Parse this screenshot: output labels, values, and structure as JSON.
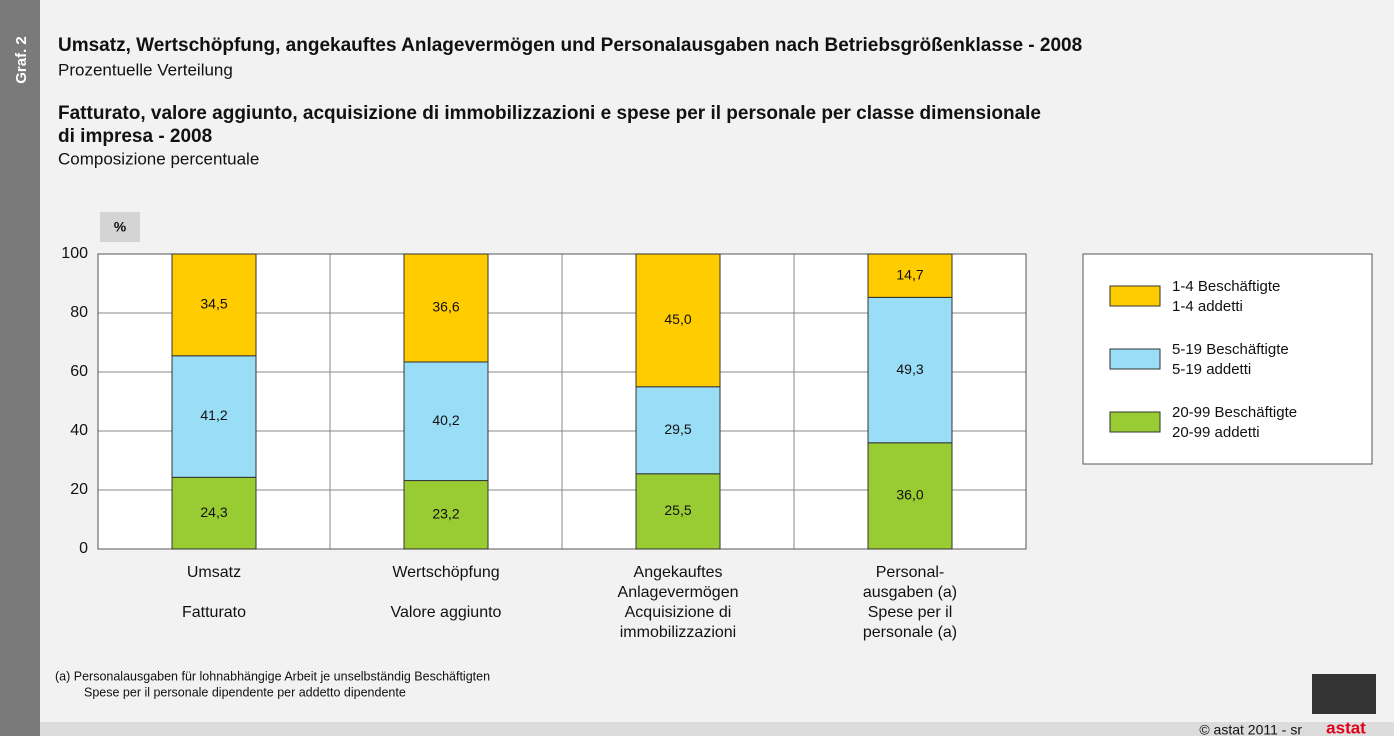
{
  "chart_data": {
    "type": "stacked_bar",
    "side_label": "Graf. 2",
    "title": "Umsatz, Wertschöpfung, angekauftes Anlagevermögen und Personalausgaben nach Betriebsgrößenklasse - 2008",
    "subtitle": "Prozentuelle Verteilung",
    "title_it": [
      "Fatturato, valore aggiunto, acquisizione di immobilizzazioni e spese per il personale per classe dimensionale",
      "di impresa - 2008"
    ],
    "subtitle_it": "Composizione percentuale",
    "y_label": "%",
    "categories": [
      {
        "de": [
          "Umsatz"
        ],
        "it": [
          "Fatturato"
        ]
      },
      {
        "de": [
          "Wertschöpfung"
        ],
        "it": [
          "Valore aggiunto"
        ]
      },
      {
        "de": [
          "Angekauftes",
          "Anlagevermögen"
        ],
        "it": [
          "Acquisizione di",
          "immobilizzazioni"
        ]
      },
      {
        "de": [
          "Personal-",
          "ausgaben (a)"
        ],
        "it": [
          "Spese per il",
          "personale (a)"
        ]
      }
    ],
    "series": [
      {
        "name": [
          "1-4 Beschäftigte",
          "1-4 addetti"
        ],
        "color": "#ffcc00",
        "values": [
          34.5,
          36.6,
          45.0,
          14.7
        ],
        "value_labels": [
          "34,5",
          "36,6",
          "45,0",
          "14,7"
        ]
      },
      {
        "name": [
          "5-19 Beschäftigte",
          "5-19 addetti"
        ],
        "color": "#99ddf7",
        "values": [
          41.2,
          40.2,
          29.5,
          49.3
        ],
        "value_labels": [
          "41,2",
          "40,2",
          "29,5",
          "49,3"
        ]
      },
      {
        "name": [
          "20-99 Beschäftigte",
          "20-99 addetti"
        ],
        "color": "#99cc33",
        "values": [
          24.3,
          23.2,
          25.5,
          36.0
        ],
        "value_labels": [
          "24,3",
          "23,2",
          "25,5",
          "36,0"
        ]
      }
    ],
    "ylim": [
      0,
      100
    ],
    "yticks": [
      0,
      20,
      40,
      60,
      80,
      100
    ],
    "grid": true,
    "legend": "right",
    "footnote": [
      "(a)  Personalausgaben für lohnabhängige Arbeit je unselbständig Beschäftigten",
      "Spese per il personale dipendente per addetto dipendente"
    ],
    "copyright": "© astat 2011 - sr",
    "logo": "astat"
  }
}
